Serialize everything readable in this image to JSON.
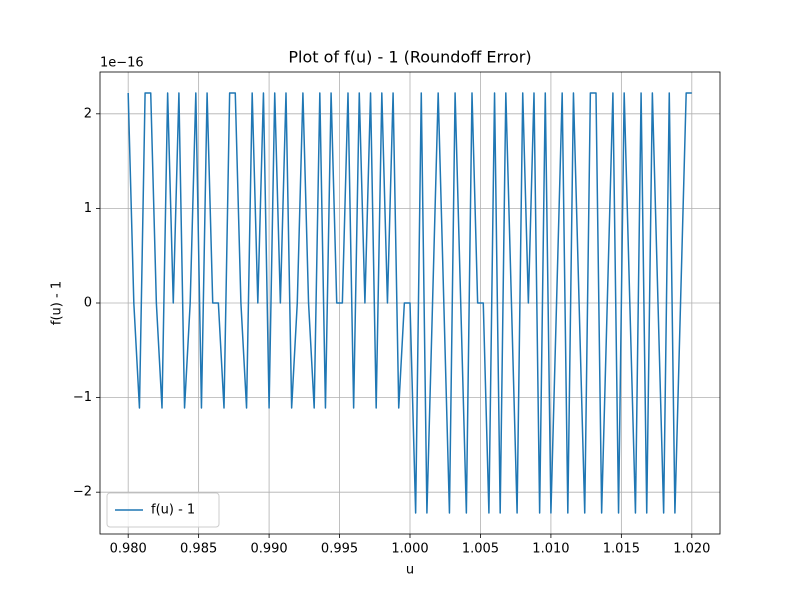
{
  "chart_data": {
    "type": "line",
    "title": "Plot of f(u) - 1 (Roundoff Error)",
    "x_label": "u",
    "y_label": "f(u) - 1",
    "y_offset_label": "1e−16",
    "x": [
      0.98,
      0.9804,
      0.9808,
      0.9812,
      0.9816,
      0.982,
      0.9824,
      0.9828,
      0.9832,
      0.9836,
      0.984,
      0.9844,
      0.9848,
      0.9852,
      0.9856,
      0.986,
      0.9864,
      0.9868,
      0.9872,
      0.9876,
      0.988,
      0.9884,
      0.9888,
      0.9892,
      0.9896,
      0.99,
      0.9904,
      0.9908,
      0.9912,
      0.9916,
      0.992,
      0.9924,
      0.9928,
      0.9932,
      0.9936,
      0.994,
      0.9944,
      0.9948,
      0.9952,
      0.9956,
      0.996,
      0.9964,
      0.9968,
      0.9972,
      0.9976,
      0.998,
      0.9984,
      0.9988,
      0.9992,
      0.9996,
      1.0,
      1.0004,
      1.0008,
      1.0012,
      1.0016,
      1.002,
      1.0024,
      1.0028,
      1.0032,
      1.0036,
      1.004,
      1.0044,
      1.0048,
      1.0052,
      1.0056,
      1.006,
      1.0064,
      1.0068,
      1.0072,
      1.0076,
      1.008,
      1.0084,
      1.0088,
      1.0092,
      1.0096,
      1.01,
      1.0104,
      1.0108,
      1.0112,
      1.0116,
      1.012,
      1.0124,
      1.0128,
      1.0132,
      1.0136,
      1.014,
      1.0144,
      1.0148,
      1.0152,
      1.0156,
      1.016,
      1.0164,
      1.0168,
      1.0172,
      1.0176,
      1.018,
      1.0184,
      1.0188,
      1.0192,
      1.0196,
      1.02
    ],
    "series": [
      {
        "name": "f(u) - 1",
        "color": "#1f77b4",
        "values": [
          2.22,
          0,
          -1.11,
          2.22,
          2.22,
          0,
          -1.11,
          2.22,
          0,
          2.22,
          -1.11,
          0,
          2.22,
          -1.11,
          2.22,
          0,
          0,
          -1.11,
          2.22,
          2.22,
          0,
          -1.11,
          2.22,
          0,
          2.22,
          -1.11,
          2.22,
          0,
          2.22,
          -1.11,
          0,
          2.22,
          0,
          -1.11,
          2.22,
          -1.11,
          2.22,
          0,
          0,
          2.22,
          -1.11,
          2.22,
          0,
          2.22,
          -1.11,
          2.22,
          0,
          2.22,
          -1.11,
          0,
          0,
          -2.22,
          2.22,
          -2.22,
          0,
          2.22,
          0,
          -2.22,
          2.22,
          0,
          -2.22,
          2.22,
          0,
          0,
          -2.22,
          2.22,
          -2.22,
          2.22,
          0,
          -2.22,
          2.22,
          0,
          2.22,
          -2.22,
          2.22,
          -2.22,
          0,
          2.22,
          -2.22,
          2.22,
          0,
          -2.22,
          2.22,
          2.22,
          -2.22,
          0,
          2.22,
          -2.22,
          2.22,
          0,
          -2.22,
          2.22,
          -2.22,
          2.22,
          0,
          -2.22,
          2.22,
          -2.22,
          0,
          2.22,
          2.22
        ]
      }
    ],
    "xlim": [
      0.978,
      1.022
    ],
    "ylim": [
      -2.442,
      2.442
    ],
    "xticks": [
      {
        "value": 0.98,
        "label": "0.980"
      },
      {
        "value": 0.985,
        "label": "0.985"
      },
      {
        "value": 0.99,
        "label": "0.990"
      },
      {
        "value": 0.995,
        "label": "0.995"
      },
      {
        "value": 1.0,
        "label": "1.000"
      },
      {
        "value": 1.005,
        "label": "1.005"
      },
      {
        "value": 1.01,
        "label": "1.010"
      },
      {
        "value": 1.015,
        "label": "1.015"
      },
      {
        "value": 1.02,
        "label": "1.020"
      }
    ],
    "yticks": [
      {
        "value": -2,
        "label": "−2"
      },
      {
        "value": -1,
        "label": "−1"
      },
      0,
      1,
      2
    ],
    "grid": true,
    "legend": "lower left"
  }
}
